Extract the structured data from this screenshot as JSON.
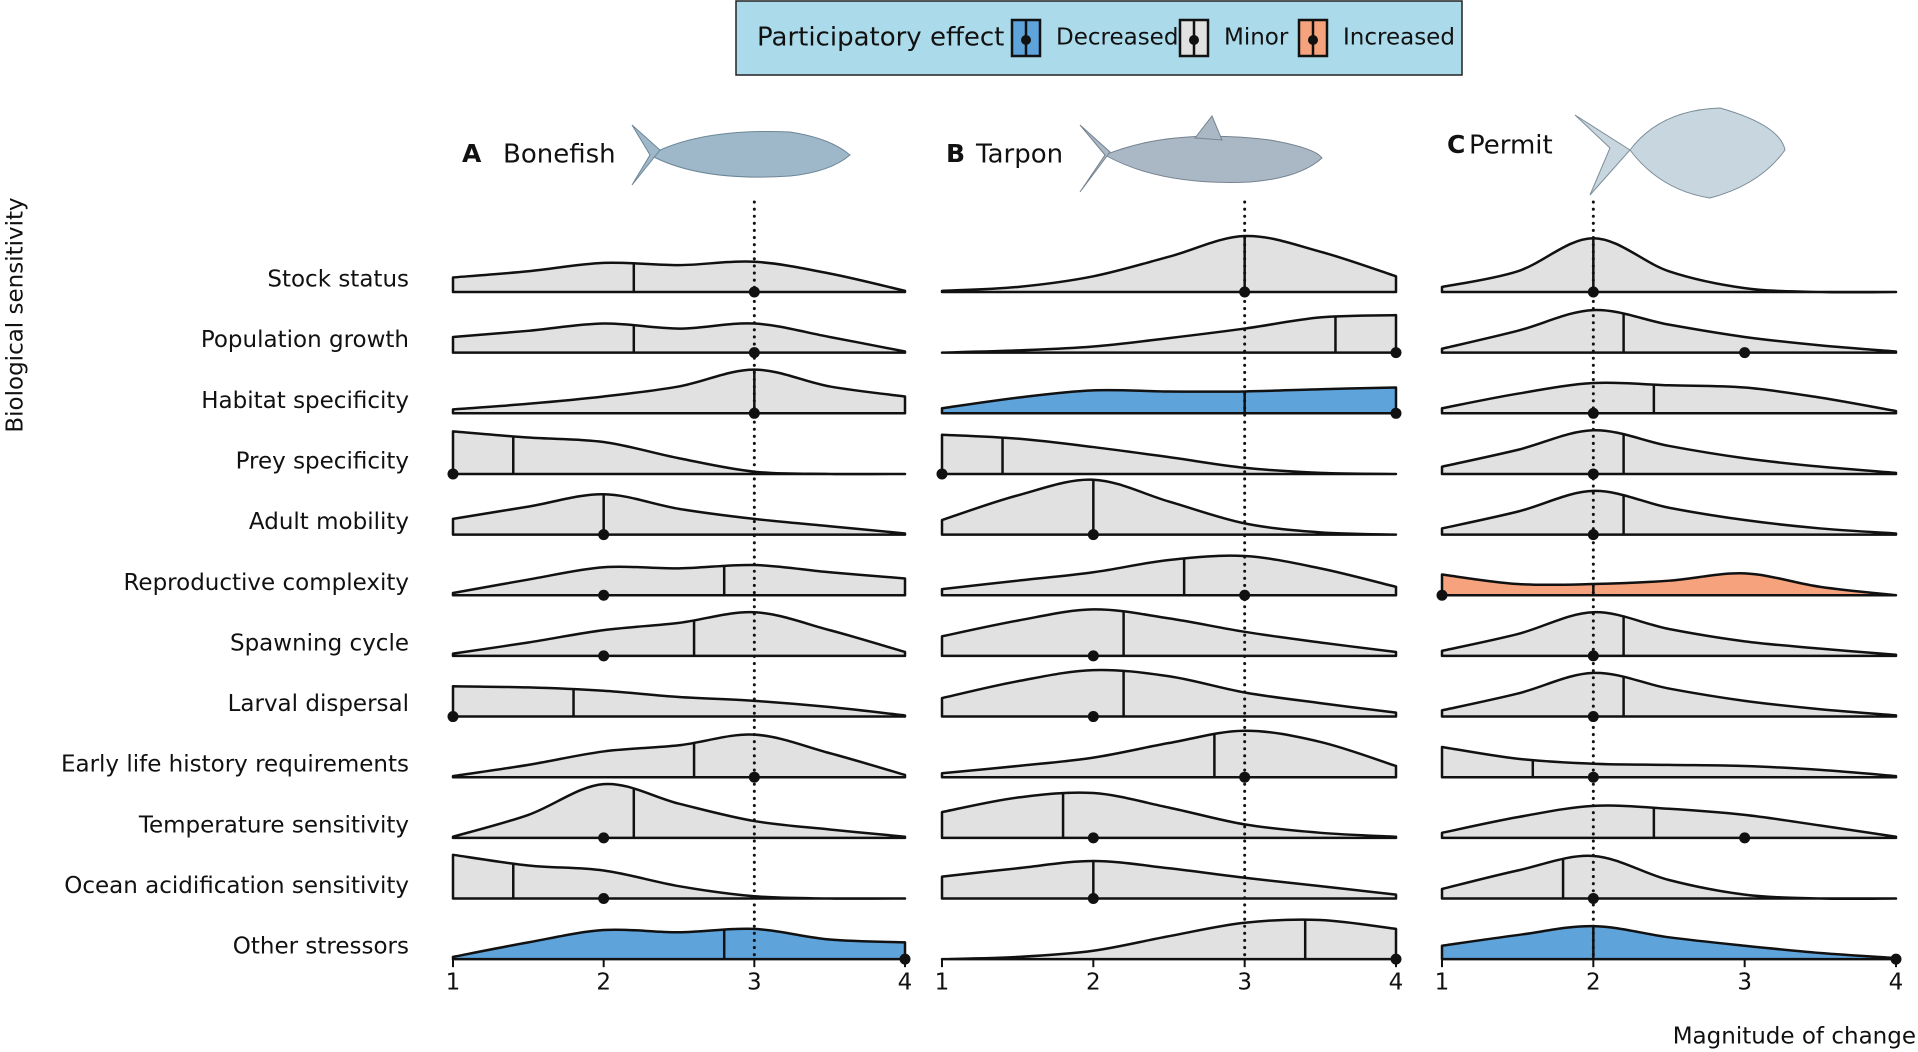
{
  "legend": {
    "title": "Participatory effect",
    "items": [
      {
        "name": "Decreased",
        "color": "#5fa3db"
      },
      {
        "name": "Minor",
        "color": "#e1e1e1"
      },
      {
        "name": "Increased",
        "color": "#f5a27d"
      }
    ]
  },
  "y_label": "Biological sensitivity",
  "x_label": "Magnitude of change",
  "categories": [
    "Stock status",
    "Population growth",
    "Habitat specificity",
    "Prey specificity",
    "Adult mobility",
    "Reproductive complexity",
    "Spawning cycle",
    "Larval dispersal",
    "Early life history requirements",
    "Temperature sensitivity",
    "Ocean acidification sensitivity",
    "Other stressors"
  ],
  "chart_data": {
    "type": "ridgeline",
    "panels": [
      {
        "label": "A",
        "title": "Bonefish",
        "xlim": [
          1,
          4
        ],
        "xticks": [
          1,
          2,
          3,
          4
        ],
        "reference": 3,
        "x": [
          1,
          1.5,
          2,
          2.5,
          3,
          3.5,
          4
        ],
        "ridges": [
          {
            "effect": "Minor",
            "density": [
              0.26,
              0.37,
              0.52,
              0.48,
              0.54,
              0.33,
              0.02
            ],
            "mean": 2.2,
            "point": 3
          },
          {
            "effect": "Minor",
            "density": [
              0.28,
              0.39,
              0.52,
              0.43,
              0.52,
              0.28,
              0.02
            ],
            "mean": 2.2,
            "point": 3
          },
          {
            "effect": "Minor",
            "density": [
              0.07,
              0.17,
              0.3,
              0.48,
              0.78,
              0.48,
              0.3
            ],
            "mean": 3,
            "point": 3
          },
          {
            "effect": "Minor",
            "density": [
              0.76,
              0.65,
              0.57,
              0.28,
              0.04,
              0,
              0
            ],
            "mean": 1.4,
            "point": 1
          },
          {
            "effect": "Minor",
            "density": [
              0.28,
              0.5,
              0.72,
              0.46,
              0.28,
              0.15,
              0.02
            ],
            "mean": 2,
            "point": 2
          },
          {
            "effect": "Minor",
            "density": [
              0.04,
              0.28,
              0.5,
              0.48,
              0.54,
              0.41,
              0.3
            ],
            "mean": 2.8,
            "point": 2
          },
          {
            "effect": "Minor",
            "density": [
              0.04,
              0.24,
              0.46,
              0.59,
              0.78,
              0.46,
              0.07
            ],
            "mean": 2.6,
            "point": 2
          },
          {
            "effect": "Minor",
            "density": [
              0.54,
              0.52,
              0.46,
              0.35,
              0.28,
              0.17,
              0.02
            ],
            "mean": 1.8,
            "point": 1
          },
          {
            "effect": "Minor",
            "density": [
              0.02,
              0.22,
              0.46,
              0.57,
              0.76,
              0.43,
              0.04
            ],
            "mean": 2.6,
            "point": 3
          },
          {
            "effect": "Minor",
            "density": [
              0.02,
              0.41,
              0.96,
              0.61,
              0.3,
              0.15,
              0.02
            ],
            "mean": 2.2,
            "point": 2
          },
          {
            "effect": "Minor",
            "density": [
              0.78,
              0.59,
              0.5,
              0.22,
              0.04,
              0,
              0
            ],
            "mean": 1.4,
            "point": 2
          },
          {
            "effect": "Decreased",
            "density": [
              0.04,
              0.3,
              0.52,
              0.48,
              0.54,
              0.35,
              0.3
            ],
            "mean": 2.8,
            "point": 4
          }
        ]
      },
      {
        "label": "B",
        "title": "Tarpon",
        "xlim": [
          1,
          4
        ],
        "xticks": [
          1,
          2,
          3,
          4
        ],
        "reference": 3,
        "x": [
          1,
          1.5,
          2,
          2.5,
          3,
          3.5,
          4
        ],
        "ridges": [
          {
            "effect": "Minor",
            "density": [
              0.02,
              0.09,
              0.28,
              0.63,
              1.0,
              0.72,
              0.28
            ],
            "mean": 3,
            "point": 3
          },
          {
            "effect": "Minor",
            "density": [
              0,
              0.04,
              0.11,
              0.26,
              0.43,
              0.63,
              0.67
            ],
            "mean": 3.6,
            "point": 4
          },
          {
            "effect": "Decreased",
            "density": [
              0.09,
              0.28,
              0.41,
              0.39,
              0.39,
              0.43,
              0.46
            ],
            "mean": 3,
            "point": 4
          },
          {
            "effect": "Minor",
            "density": [
              0.7,
              0.63,
              0.48,
              0.3,
              0.11,
              0.02,
              0
            ],
            "mean": 1.4,
            "point": 1
          },
          {
            "effect": "Minor",
            "density": [
              0.26,
              0.7,
              0.98,
              0.59,
              0.2,
              0.04,
              0
            ],
            "mean": 2,
            "point": 2
          },
          {
            "effect": "Minor",
            "density": [
              0.11,
              0.26,
              0.41,
              0.63,
              0.7,
              0.48,
              0.15
            ],
            "mean": 2.6,
            "point": 3
          },
          {
            "effect": "Minor",
            "density": [
              0.35,
              0.63,
              0.83,
              0.67,
              0.43,
              0.24,
              0.07
            ],
            "mean": 2.2,
            "point": 2
          },
          {
            "effect": "Minor",
            "density": [
              0.33,
              0.63,
              0.83,
              0.72,
              0.43,
              0.24,
              0.07
            ],
            "mean": 2.2,
            "point": 2
          },
          {
            "effect": "Minor",
            "density": [
              0.07,
              0.2,
              0.35,
              0.61,
              0.83,
              0.63,
              0.2
            ],
            "mean": 2.8,
            "point": 3
          },
          {
            "effect": "Minor",
            "density": [
              0.46,
              0.72,
              0.8,
              0.54,
              0.24,
              0.09,
              0.02
            ],
            "mean": 1.8,
            "point": 2
          },
          {
            "effect": "Minor",
            "density": [
              0.39,
              0.54,
              0.67,
              0.54,
              0.37,
              0.22,
              0.07
            ],
            "mean": 2,
            "point": 2
          },
          {
            "effect": "Minor",
            "density": [
              0,
              0.04,
              0.15,
              0.41,
              0.65,
              0.7,
              0.54
            ],
            "mean": 3.4,
            "point": 4
          }
        ]
      },
      {
        "label": "C",
        "title": "Permit",
        "xlim": [
          1,
          4
        ],
        "xticks": [
          1,
          2,
          3,
          4
        ],
        "reference": 2,
        "x": [
          1,
          1.5,
          2,
          2.5,
          3,
          3.5,
          4
        ],
        "ridges": [
          {
            "effect": "Minor",
            "density": [
              0.09,
              0.37,
              0.96,
              0.37,
              0.07,
              0,
              0
            ],
            "mean": 2,
            "point": 2
          },
          {
            "effect": "Minor",
            "density": [
              0.07,
              0.39,
              0.76,
              0.5,
              0.28,
              0.13,
              0.02
            ],
            "mean": 2.2,
            "point": 3
          },
          {
            "effect": "Minor",
            "density": [
              0.09,
              0.35,
              0.54,
              0.5,
              0.46,
              0.28,
              0.04
            ],
            "mean": 2.4,
            "point": 2
          },
          {
            "effect": "Minor",
            "density": [
              0.13,
              0.43,
              0.78,
              0.5,
              0.28,
              0.13,
              0.02
            ],
            "mean": 2.2,
            "point": 2
          },
          {
            "effect": "Minor",
            "density": [
              0.11,
              0.41,
              0.78,
              0.48,
              0.26,
              0.11,
              0.02
            ],
            "mean": 2.2,
            "point": 2
          },
          {
            "effect": "Increased",
            "density": [
              0.37,
              0.2,
              0.2,
              0.26,
              0.39,
              0.15,
              0
            ],
            "mean": 2,
            "point": 1
          },
          {
            "effect": "Minor",
            "density": [
              0.09,
              0.39,
              0.78,
              0.48,
              0.26,
              0.13,
              0.02
            ],
            "mean": 2.2,
            "point": 2
          },
          {
            "effect": "Minor",
            "density": [
              0.11,
              0.41,
              0.78,
              0.5,
              0.28,
              0.13,
              0.02
            ],
            "mean": 2.2,
            "point": 2
          },
          {
            "effect": "Minor",
            "density": [
              0.54,
              0.33,
              0.24,
              0.22,
              0.2,
              0.13,
              0.02
            ],
            "mean": 1.6,
            "point": 2
          },
          {
            "effect": "Minor",
            "density": [
              0.09,
              0.37,
              0.57,
              0.52,
              0.41,
              0.22,
              0.02
            ],
            "mean": 2.4,
            "point": 3
          },
          {
            "effect": "Minor",
            "density": [
              0.17,
              0.5,
              0.76,
              0.33,
              0.07,
              0,
              0
            ],
            "mean": 1.8,
            "point": 2
          },
          {
            "effect": "Decreased",
            "density": [
              0.24,
              0.43,
              0.59,
              0.39,
              0.24,
              0.11,
              0.02
            ],
            "mean": 2,
            "point": 4
          }
        ]
      }
    ]
  }
}
